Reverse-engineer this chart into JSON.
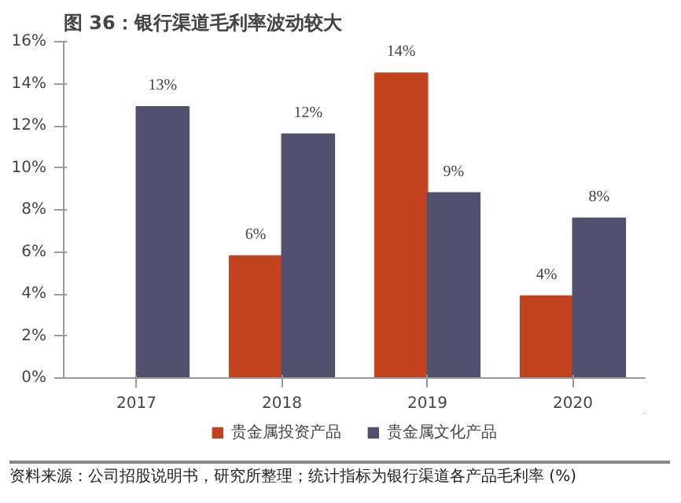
{
  "chart_data": {
    "type": "bar",
    "title": "图 36：银行渠道毛利率波动较大",
    "categories": [
      "2017",
      "2018",
      "2019",
      "2020"
    ],
    "series": [
      {
        "name": "贵金属投资产品",
        "color": "#c4431f",
        "values": [
          null,
          5.8,
          14.5,
          3.9
        ],
        "value_labels": [
          null,
          "6%",
          "14%",
          "4%"
        ]
      },
      {
        "name": "贵金属文化产品",
        "color": "#52506f",
        "values": [
          12.9,
          11.6,
          8.8,
          7.6
        ],
        "value_labels": [
          "13%",
          "12%",
          "9%",
          "8%"
        ]
      }
    ],
    "ylim": [
      0,
      16
    ],
    "yticks": [
      {
        "value": 0,
        "label": "0%"
      },
      {
        "value": 2,
        "label": "2%"
      },
      {
        "value": 4,
        "label": "4%"
      },
      {
        "value": 6,
        "label": "6%"
      },
      {
        "value": 8,
        "label": "8%"
      },
      {
        "value": 10,
        "label": "10%"
      },
      {
        "value": 12,
        "label": "12%"
      },
      {
        "value": 14,
        "label": "14%"
      },
      {
        "value": 16,
        "label": "16%"
      }
    ],
    "grid": false,
    "legend": "bottom",
    "annotations": [
      "资料来源：公司招股说明书，研究所整理；统计指标为银行渠道各产品毛利率 (%)"
    ]
  }
}
